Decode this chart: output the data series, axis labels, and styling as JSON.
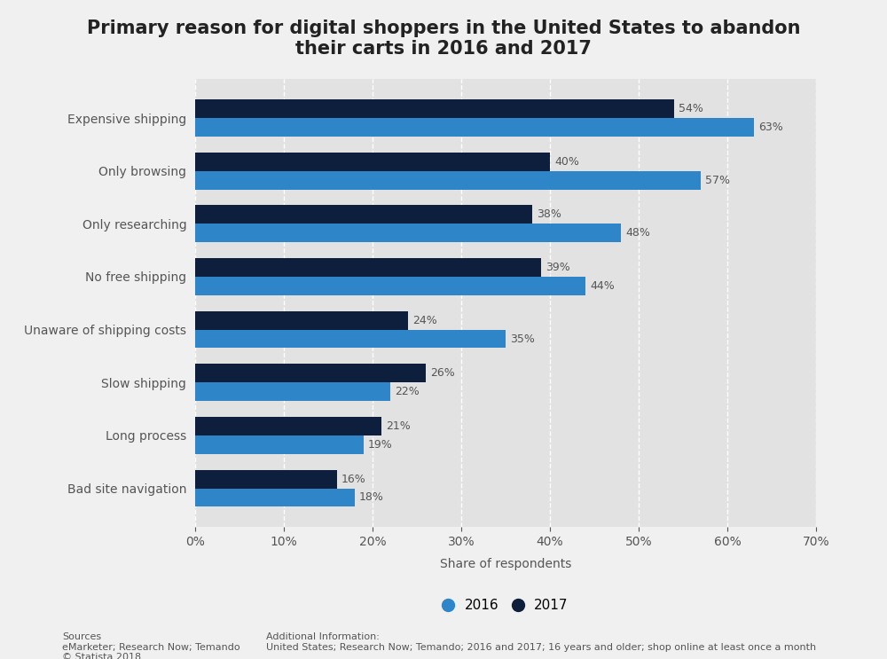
{
  "title": "Primary reason for digital shoppers in the United States to abandon\ntheir carts in 2016 and 2017",
  "categories": [
    "Expensive shipping",
    "Only browsing",
    "Only researching",
    "No free shipping",
    "Unaware of shipping costs",
    "Slow shipping",
    "Long process",
    "Bad site navigation"
  ],
  "values_2016": [
    63,
    57,
    48,
    44,
    35,
    22,
    19,
    18
  ],
  "values_2017": [
    54,
    40,
    38,
    39,
    24,
    26,
    21,
    16
  ],
  "color_2016": "#2e86c9",
  "color_2017": "#0d1f3c",
  "xlabel": "Share of respondents",
  "background_color": "#f0f0f0",
  "plot_background_color": "#e2e2e2",
  "bar_height": 0.35,
  "xlim": [
    0,
    70
  ],
  "xticks": [
    0,
    10,
    20,
    30,
    40,
    50,
    60,
    70
  ],
  "legend_2016": "2016",
  "legend_2017": "2017",
  "sources_text": "Sources\neMarketer; Research Now; Temando\n© Statista 2018",
  "additional_info_text": "Additional Information:\nUnited States; Research Now; Temando; 2016 and 2017; 16 years and older; shop online at least once a month",
  "title_fontsize": 15,
  "label_fontsize": 10,
  "tick_fontsize": 10,
  "bar_label_fontsize": 9
}
